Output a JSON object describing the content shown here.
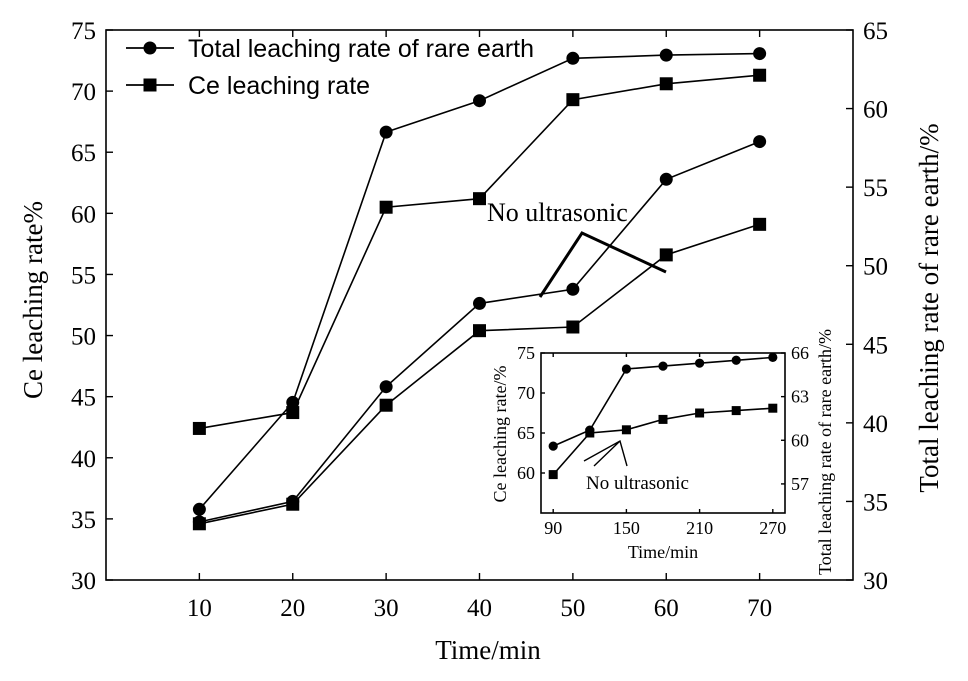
{
  "chart_data": [
    {
      "type": "line",
      "x": [
        10,
        20,
        30,
        40,
        50,
        60,
        70
      ],
      "xlabel": "Time/min",
      "ylabel": "Ce leaching rate%",
      "y2label": "Total leaching rate of rare earth/%",
      "xlim": [
        0,
        80
      ],
      "xticks": [
        10,
        20,
        30,
        40,
        50,
        60,
        70
      ],
      "ylim": [
        30,
        75
      ],
      "yticks": [
        30,
        35,
        40,
        45,
        50,
        55,
        60,
        65,
        70,
        75
      ],
      "y2lim": [
        30,
        65
      ],
      "y2ticks": [
        30,
        35,
        40,
        45,
        50,
        55,
        60,
        65
      ],
      "legend_position": "top-left",
      "series": [
        {
          "name": "Total leaching rate of rare earth",
          "marker": "circle",
          "axis": "right",
          "condition": "ultrasonic",
          "values": [
            34.5,
            41.3,
            58.5,
            60.5,
            63.2,
            63.4,
            63.5
          ]
        },
        {
          "name": "Ce leaching rate",
          "marker": "square",
          "axis": "left",
          "condition": "ultrasonic",
          "values": [
            42.4,
            43.7,
            60.5,
            61.2,
            69.3,
            70.6,
            71.3
          ]
        },
        {
          "name": "",
          "marker": "circle",
          "axis": "right",
          "condition": "no ultrasonic",
          "values": [
            33.7,
            35.0,
            42.3,
            47.6,
            48.5,
            55.5,
            57.9
          ]
        },
        {
          "name": "",
          "marker": "square",
          "axis": "left",
          "condition": "no ultrasonic",
          "values": [
            34.6,
            36.2,
            44.3,
            50.4,
            50.7,
            56.6,
            59.1
          ]
        }
      ],
      "annotations": [
        {
          "text": "No ultrasonic"
        }
      ]
    },
    {
      "type": "line",
      "inset": true,
      "x": [
        90,
        120,
        150,
        180,
        210,
        240,
        270
      ],
      "xlabel": "Time/min",
      "ylabel": "Ce leaching rate/%",
      "y2label": "Total leaching rate of rare earth/%",
      "xlim": [
        80,
        280
      ],
      "xticks": [
        90,
        150,
        210,
        270
      ],
      "ylim": [
        55,
        75
      ],
      "yticks": [
        60,
        65,
        70,
        75
      ],
      "y2lim": [
        55,
        66
      ],
      "y2ticks": [
        57,
        60,
        63,
        66
      ],
      "series": [
        {
          "name": "",
          "marker": "circle",
          "axis": "right",
          "values": [
            59.6,
            60.7,
            64.9,
            65.1,
            65.3,
            65.5,
            65.7
          ]
        },
        {
          "name": "",
          "marker": "square",
          "axis": "left",
          "values": [
            59.8,
            65.0,
            65.4,
            66.7,
            67.5,
            67.8,
            68.1
          ]
        }
      ],
      "annotations": [
        {
          "text": "No ultrasonic"
        }
      ]
    }
  ]
}
